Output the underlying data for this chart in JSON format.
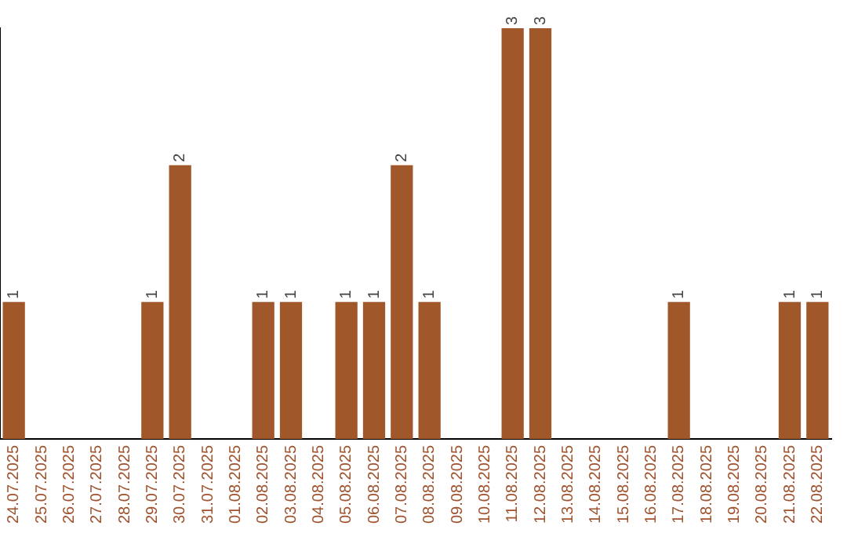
{
  "chart_data": {
    "type": "bar",
    "categories": [
      "24.07.2025",
      "25.07.2025",
      "26.07.2025",
      "27.07.2025",
      "28.07.2025",
      "29.07.2025",
      "30.07.2025",
      "31.07.2025",
      "01.08.2025",
      "02.08.2025",
      "03.08.2025",
      "04.08.2025",
      "05.08.2025",
      "06.08.2025",
      "07.08.2025",
      "08.08.2025",
      "09.08.2025",
      "10.08.2025",
      "11.08.2025",
      "12.08.2025",
      "13.08.2025",
      "14.08.2025",
      "15.08.2025",
      "16.08.2025",
      "17.08.2025",
      "18.08.2025",
      "19.08.2025",
      "20.08.2025",
      "21.08.2025",
      "22.08.2025"
    ],
    "values": [
      1,
      0,
      0,
      0,
      0,
      1,
      2,
      0,
      0,
      1,
      1,
      0,
      1,
      1,
      2,
      1,
      0,
      0,
      3,
      3,
      0,
      0,
      0,
      0,
      1,
      0,
      0,
      0,
      1,
      1
    ],
    "value_labels": [
      "1",
      null,
      null,
      null,
      null,
      "1",
      "2",
      null,
      null,
      "1",
      "1",
      null,
      "1",
      "1",
      "2",
      "1",
      null,
      null,
      "3",
      "3",
      null,
      null,
      null,
      null,
      "1",
      null,
      null,
      null,
      "1",
      "1"
    ],
    "color": "#a0572a",
    "grid": false,
    "legend": false,
    "tick_labels": "x"
  }
}
